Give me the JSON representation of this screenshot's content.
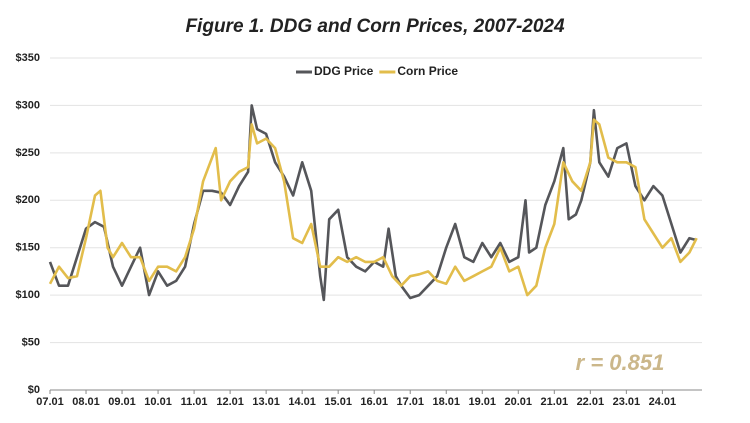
{
  "chart_data": {
    "type": "line",
    "title": "Figure 1. DDG and Corn Prices, 2007-2024",
    "annotation": "r = 0.851",
    "legend": "top",
    "grid": true,
    "xlim": [
      2007,
      2025.1
    ],
    "ylim": [
      0,
      350
    ],
    "xticks": [
      {
        "value": 2007,
        "label": "07.01"
      },
      {
        "value": 2008,
        "label": "08.01"
      },
      {
        "value": 2009,
        "label": "09.01"
      },
      {
        "value": 2010,
        "label": "10.01"
      },
      {
        "value": 2011,
        "label": "11.01"
      },
      {
        "value": 2012,
        "label": "12.01"
      },
      {
        "value": 2013,
        "label": "13.01"
      },
      {
        "value": 2014,
        "label": "14.01"
      },
      {
        "value": 2015,
        "label": "15.01"
      },
      {
        "value": 2016,
        "label": "16.01"
      },
      {
        "value": 2017,
        "label": "17.01"
      },
      {
        "value": 2018,
        "label": "18.01"
      },
      {
        "value": 2019,
        "label": "19.01"
      },
      {
        "value": 2020,
        "label": "20.01"
      },
      {
        "value": 2021,
        "label": "21.01"
      },
      {
        "value": 2022,
        "label": "22.01"
      },
      {
        "value": 2023,
        "label": "23.01"
      },
      {
        "value": 2024,
        "label": "24.01"
      }
    ],
    "yticks": [
      {
        "value": 0,
        "label": "$0"
      },
      {
        "value": 50,
        "label": "$50"
      },
      {
        "value": 100,
        "label": "$100"
      },
      {
        "value": 150,
        "label": "$150"
      },
      {
        "value": 200,
        "label": "$200"
      },
      {
        "value": 250,
        "label": "$250"
      },
      {
        "value": 300,
        "label": "$300"
      },
      {
        "value": 350,
        "label": "$350"
      }
    ],
    "series": [
      {
        "name": "DDG Price",
        "color": "#55565a",
        "x": [
          2007,
          2007.25,
          2007.5,
          2007.75,
          2008,
          2008.25,
          2008.5,
          2008.75,
          2009,
          2009.25,
          2009.5,
          2009.75,
          2010,
          2010.25,
          2010.5,
          2010.75,
          2011,
          2011.25,
          2011.5,
          2011.75,
          2012,
          2012.25,
          2012.5,
          2012.6,
          2012.75,
          2013,
          2013.25,
          2013.5,
          2013.75,
          2014,
          2014.25,
          2014.5,
          2014.6,
          2014.75,
          2015,
          2015.25,
          2015.5,
          2015.75,
          2016,
          2016.25,
          2016.4,
          2016.6,
          2016.75,
          2017,
          2017.25,
          2017.5,
          2017.75,
          2018,
          2018.25,
          2018.5,
          2018.75,
          2019,
          2019.25,
          2019.5,
          2019.75,
          2020,
          2020.2,
          2020.3,
          2020.5,
          2020.75,
          2021,
          2021.25,
          2021.4,
          2021.6,
          2021.75,
          2022,
          2022.1,
          2022.25,
          2022.5,
          2022.75,
          2023,
          2023.25,
          2023.5,
          2023.75,
          2024,
          2024.25,
          2024.5,
          2024.75,
          2024.95
        ],
        "values": [
          135,
          110,
          110,
          140,
          170,
          177,
          172,
          130,
          110,
          130,
          150,
          100,
          125,
          110,
          115,
          130,
          175,
          210,
          210,
          208,
          195,
          215,
          230,
          300,
          275,
          270,
          240,
          225,
          205,
          240,
          210,
          120,
          95,
          180,
          190,
          140,
          130,
          125,
          135,
          130,
          170,
          120,
          110,
          97,
          100,
          110,
          120,
          150,
          175,
          140,
          135,
          155,
          140,
          155,
          135,
          140,
          200,
          145,
          150,
          195,
          220,
          255,
          180,
          185,
          200,
          240,
          295,
          240,
          225,
          255,
          260,
          215,
          200,
          215,
          205,
          175,
          145,
          160,
          158
        ]
      },
      {
        "name": "Corn Price",
        "color": "#e2bd4b",
        "x": [
          2007,
          2007.25,
          2007.5,
          2007.75,
          2008,
          2008.25,
          2008.4,
          2008.6,
          2008.75,
          2009,
          2009.25,
          2009.5,
          2009.75,
          2010,
          2010.25,
          2010.5,
          2010.75,
          2011,
          2011.25,
          2011.5,
          2011.6,
          2011.75,
          2012,
          2012.25,
          2012.5,
          2012.6,
          2012.75,
          2013,
          2013.25,
          2013.5,
          2013.75,
          2014,
          2014.25,
          2014.5,
          2014.75,
          2015,
          2015.25,
          2015.5,
          2015.75,
          2016,
          2016.25,
          2016.5,
          2016.75,
          2017,
          2017.25,
          2017.5,
          2017.75,
          2018,
          2018.25,
          2018.5,
          2018.75,
          2019,
          2019.25,
          2019.5,
          2019.75,
          2020,
          2020.25,
          2020.5,
          2020.75,
          2021,
          2021.25,
          2021.5,
          2021.75,
          2022,
          2022.1,
          2022.25,
          2022.5,
          2022.75,
          2023,
          2023.25,
          2023.5,
          2023.75,
          2024,
          2024.25,
          2024.5,
          2024.75,
          2024.95
        ],
        "values": [
          112,
          130,
          118,
          120,
          160,
          205,
          210,
          150,
          140,
          155,
          140,
          140,
          115,
          130,
          130,
          125,
          140,
          170,
          220,
          245,
          255,
          200,
          220,
          230,
          235,
          280,
          260,
          265,
          255,
          220,
          160,
          155,
          175,
          130,
          130,
          140,
          135,
          140,
          135,
          135,
          140,
          120,
          110,
          120,
          122,
          125,
          115,
          112,
          130,
          115,
          120,
          125,
          130,
          150,
          125,
          130,
          100,
          110,
          150,
          175,
          240,
          220,
          210,
          240,
          285,
          280,
          245,
          240,
          240,
          235,
          180,
          165,
          150,
          160,
          135,
          145,
          160
        ]
      }
    ]
  }
}
